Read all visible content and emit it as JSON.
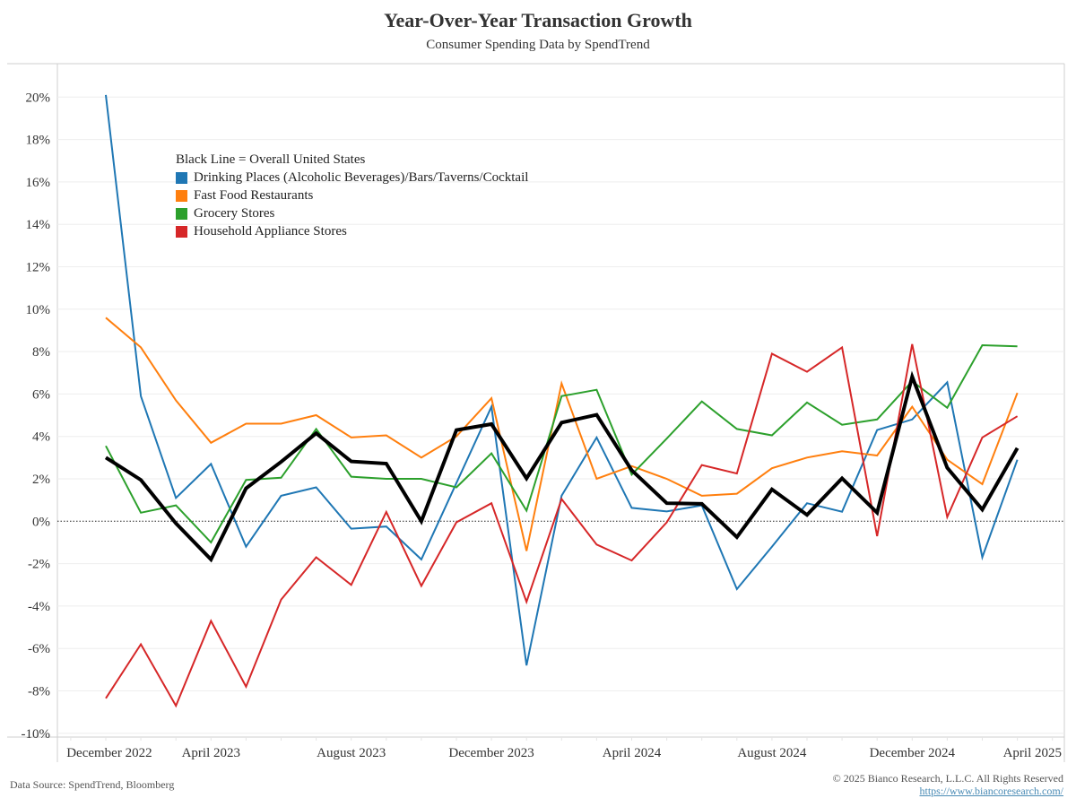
{
  "header": {
    "title": "Year-Over-Year Transaction Growth",
    "subtitle": "Consumer Spending Data by SpendTrend"
  },
  "footer": {
    "source": "Data Source: SpendTrend, Bloomberg",
    "copyright": "© 2025 Bianco Research, L.L.C. All Rights Reserved",
    "link": "https://www.biancoresearch.com/"
  },
  "legend": {
    "note": "Black Line = Overall United States",
    "items": [
      {
        "label": "Drinking Places (Alcoholic Beverages)/Bars/Taverns/Cocktail",
        "color": "#1f77b4"
      },
      {
        "label": "Fast Food Restaurants",
        "color": "#ff7f0e"
      },
      {
        "label": "Grocery Stores",
        "color": "#2ca02c"
      },
      {
        "label": "Household Appliance Stores",
        "color": "#d62728"
      }
    ]
  },
  "chart_data": {
    "type": "line",
    "title": "Year-Over-Year Transaction Growth",
    "subtitle": "Consumer Spending Data by SpendTrend",
    "xlabel": "",
    "ylabel": "",
    "ylim": [
      -10.5,
      21
    ],
    "yticks": [
      -10,
      -8,
      -6,
      -4,
      -2,
      0,
      2,
      4,
      6,
      8,
      10,
      12,
      14,
      16,
      18,
      20
    ],
    "ytick_suffix": "%",
    "grid": true,
    "zero_line": "dotted",
    "legend_position": "top-left",
    "x_count": 27,
    "xlim": [
      -1.3,
      27.8
    ],
    "xtick_labels": [
      {
        "label": "December 2022",
        "at": 0.1
      },
      {
        "label": "April 2023",
        "at": 3.0
      },
      {
        "label": "August 2023",
        "at": 7.0
      },
      {
        "label": "December 2023",
        "at": 11.0
      },
      {
        "label": "April 2024",
        "at": 15.0
      },
      {
        "label": "August 2024",
        "at": 19.0
      },
      {
        "label": "December 2024",
        "at": 23.0
      },
      {
        "label": "April 2025",
        "at": 26.8
      }
    ],
    "series": [
      {
        "name": "Drinking Places (Alcoholic Beverages)/Bars/Taverns/Cocktail",
        "color": "#1f77b4",
        "width": "normal",
        "values": [
          20.1,
          5.9,
          1.1,
          2.7,
          -1.2,
          1.2,
          1.6,
          -0.35,
          -0.25,
          -1.8,
          1.8,
          5.4,
          -6.8,
          1.2,
          3.95,
          0.63,
          0.46,
          0.75,
          -3.2,
          -1.2,
          0.85,
          0.45,
          4.3,
          4.8,
          6.55,
          -1.7,
          2.9
        ]
      },
      {
        "name": "Fast Food Restaurants",
        "color": "#ff7f0e",
        "width": "normal",
        "values": [
          9.6,
          8.2,
          5.7,
          3.7,
          4.6,
          4.6,
          5.0,
          3.95,
          4.05,
          3.0,
          4.0,
          5.8,
          -1.4,
          6.5,
          2.0,
          2.6,
          2.0,
          1.2,
          1.3,
          2.5,
          3.0,
          3.3,
          3.1,
          5.4,
          2.9,
          1.75,
          6.05
        ]
      },
      {
        "name": "Grocery Stores",
        "color": "#2ca02c",
        "width": "normal",
        "values": [
          3.55,
          0.4,
          0.75,
          -1.0,
          1.95,
          2.05,
          4.35,
          2.1,
          2.0,
          2.0,
          1.6,
          3.2,
          0.5,
          5.9,
          6.2,
          2.2,
          3.9,
          5.65,
          4.35,
          4.05,
          5.6,
          4.55,
          4.8,
          6.6,
          5.35,
          8.3,
          8.25
        ]
      },
      {
        "name": "Household Appliance Stores",
        "color": "#d62728",
        "width": "normal",
        "values": [
          -8.35,
          -5.8,
          -8.7,
          -4.7,
          -7.8,
          -3.7,
          -1.7,
          -3.0,
          0.44,
          -3.05,
          -0.05,
          0.85,
          -3.8,
          1.05,
          -1.1,
          -1.85,
          -0.05,
          2.65,
          2.25,
          7.9,
          7.05,
          8.2,
          -0.7,
          8.35,
          0.2,
          3.95,
          4.95
        ]
      },
      {
        "name": "Overall United States",
        "color": "#000000",
        "width": "thick",
        "values": [
          3.0,
          1.95,
          -0.1,
          -1.8,
          1.55,
          2.8,
          4.15,
          2.82,
          2.72,
          0.0,
          4.3,
          4.58,
          2.02,
          4.65,
          5.02,
          2.4,
          0.85,
          0.82,
          -0.75,
          1.5,
          0.3,
          2.02,
          0.4,
          6.82,
          2.52,
          0.55,
          3.45
        ]
      }
    ]
  }
}
